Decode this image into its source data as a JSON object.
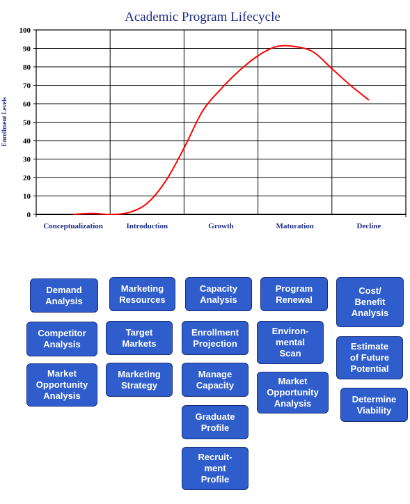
{
  "chart_data": {
    "type": "line",
    "title": "Academic Program Lifecycle",
    "ylabel": "Enrollment Levels",
    "xlabel": "",
    "ylim": [
      0,
      100
    ],
    "yticks": [
      "0",
      "10",
      "20",
      "30",
      "40",
      "50",
      "60",
      "70",
      "80",
      "90",
      "100"
    ],
    "categories": [
      "Conceptualization",
      "Introduction",
      "Growth",
      "Maturation",
      "Decline"
    ],
    "grid": true,
    "line_color": "#ff0000",
    "x": [
      0.5,
      0.75,
      1.0,
      1.25,
      1.5,
      1.75,
      2.0,
      2.25,
      2.5,
      2.75,
      3.0,
      3.25,
      3.5,
      3.75,
      4.0,
      4.25,
      4.5
    ],
    "values": [
      0,
      0.5,
      0,
      1,
      6,
      18,
      36,
      56,
      68,
      78,
      86,
      91,
      91,
      88,
      79,
      70,
      62
    ]
  },
  "boxes": [
    [
      "Demand\nAnalysis",
      "Competitor\nAnalysis",
      "Market\nOpportunity\nAnalysis"
    ],
    [
      "Marketing\nResources",
      "Target\nMarkets",
      "Marketing\nStrategy"
    ],
    [
      "Capacity\nAnalysis",
      "Enrollment\nProjection",
      "Manage\nCapacity",
      "Graduate\nProfile",
      "Recruit-\nment\nProfile"
    ],
    [
      "Program\nRenewal",
      "Environ-\nmental\nScan",
      "Market\nOpportunity\nAnalysis"
    ],
    [
      "Cost/\nBenefit\nAnalysis",
      "Estimate\nof Future\nPotential",
      "Determine\nViability"
    ]
  ],
  "colors": {
    "box_fill": "#2f5dcc",
    "box_border": "#1a2f78",
    "text_dark": "#1f2d86",
    "line": "#ff0000"
  }
}
